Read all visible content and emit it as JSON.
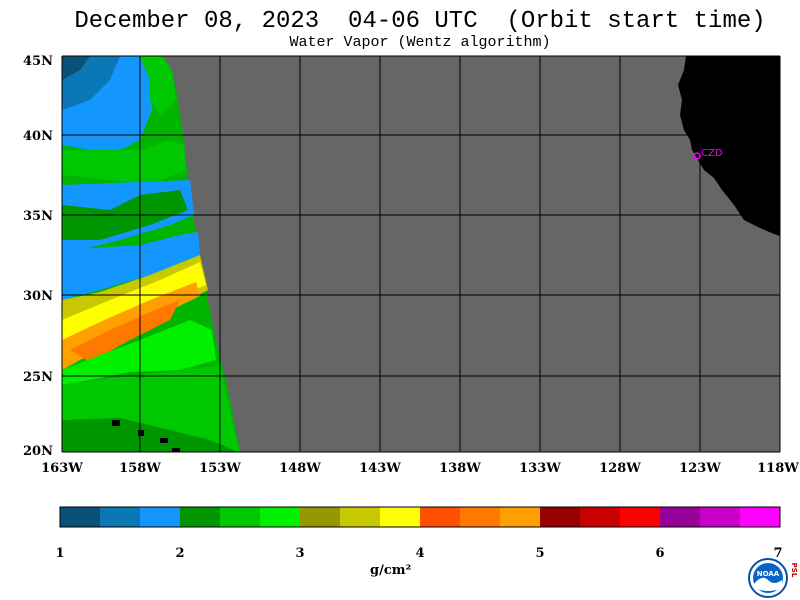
{
  "title": "December 08, 2023  04-06 UTC  (Orbit start time)",
  "subtitle": "Water Vapor (Wentz algorithm)",
  "map": {
    "lat_labels": [
      "45N",
      "40N",
      "35N",
      "30N",
      "25N",
      "20N"
    ],
    "lon_labels": [
      "163W",
      "158W",
      "153W",
      "148W",
      "143W",
      "138W",
      "133W",
      "128W",
      "123W",
      "118W"
    ],
    "station_label": "CZD",
    "no_data_color": "#666666",
    "land_color": "#000000",
    "station_color": "#ff00ff"
  },
  "colorbar": {
    "colors": [
      "#0a5078",
      "#0a78b4",
      "#1496ff",
      "#009600",
      "#00c800",
      "#00f000",
      "#969600",
      "#c8c800",
      "#ffff00",
      "#ff5000",
      "#ff7800",
      "#ffa000",
      "#960000",
      "#c80000",
      "#ff0000",
      "#960096",
      "#c800c8",
      "#ff00ff"
    ],
    "tick_labels": [
      "1",
      "2",
      "3",
      "4",
      "5",
      "6",
      "7"
    ],
    "unit": "g/cm²"
  },
  "logo": {
    "text": "NOAA",
    "side_text": "PSL"
  }
}
